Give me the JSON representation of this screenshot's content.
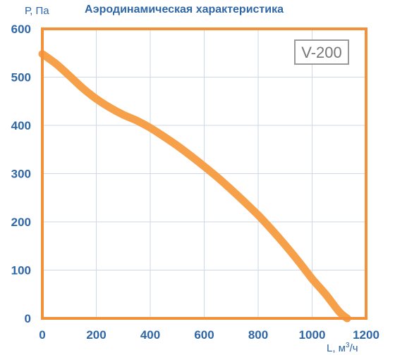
{
  "colors": {
    "curve": "#f7a04a",
    "frame": "#f2913a",
    "grid": "#cfd9e6",
    "text": "#2f66a6",
    "badge_border": "#9a9a9a",
    "badge_text": "#777777"
  },
  "chart_data": {
    "type": "line",
    "title": "Аэродинамическая характеристика",
    "xlabel": "L, м³/ч",
    "ylabel": "Р, Па",
    "xlim": [
      0,
      1200
    ],
    "ylim": [
      0,
      600
    ],
    "xticks": [
      0,
      200,
      400,
      600,
      800,
      1000,
      1200
    ],
    "yticks": [
      0,
      100,
      200,
      300,
      400,
      500,
      600
    ],
    "grid": true,
    "series": [
      {
        "name": "V-200",
        "x": [
          0,
          50,
          100,
          150,
          200,
          250,
          300,
          350,
          400,
          450,
          500,
          550,
          600,
          650,
          700,
          750,
          800,
          850,
          900,
          950,
          1000,
          1050,
          1100,
          1130
        ],
        "y": [
          548,
          528,
          503,
          477,
          455,
          437,
          422,
          410,
          395,
          377,
          358,
          337,
          315,
          292,
          267,
          241,
          214,
          184,
          152,
          118,
          82,
          50,
          14,
          0
        ]
      }
    ]
  }
}
